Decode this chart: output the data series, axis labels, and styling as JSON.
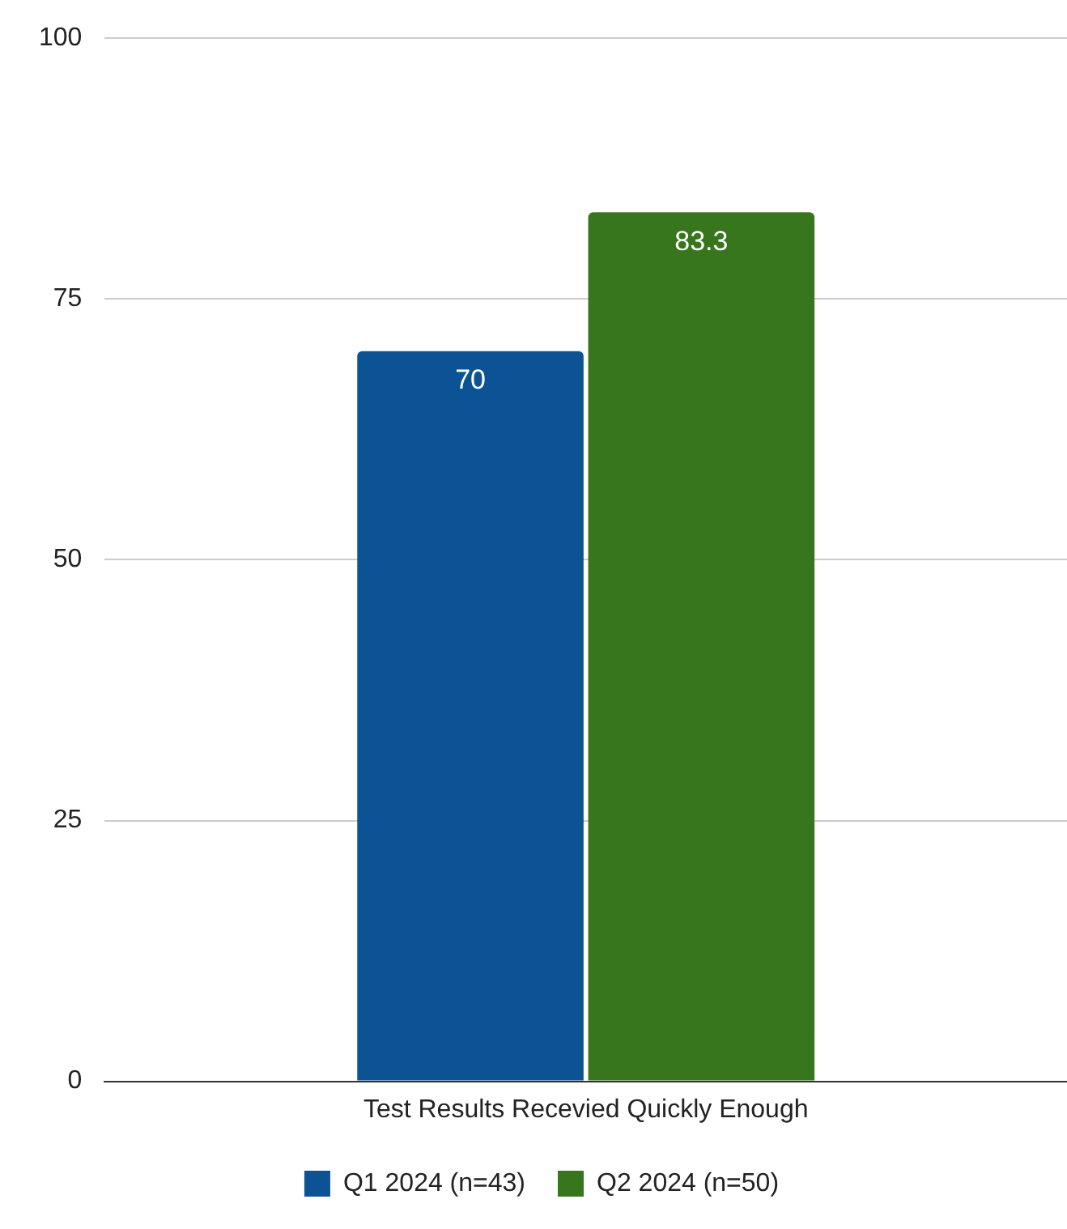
{
  "chart_data": {
    "type": "bar",
    "categories": [
      "Test Results Recevied Quickly Enough"
    ],
    "series": [
      {
        "name": "Q1 2024 (n=43)",
        "color": "#0b5394",
        "values": [
          70
        ]
      },
      {
        "name": "Q2 2024 (n=50)",
        "color": "#38761d",
        "values": [
          83.3
        ]
      }
    ],
    "ylim": [
      0,
      100
    ],
    "yticks": [
      0,
      25,
      50,
      75,
      100
    ],
    "grid": "y",
    "legend": "bottom",
    "data_labels": true
  }
}
